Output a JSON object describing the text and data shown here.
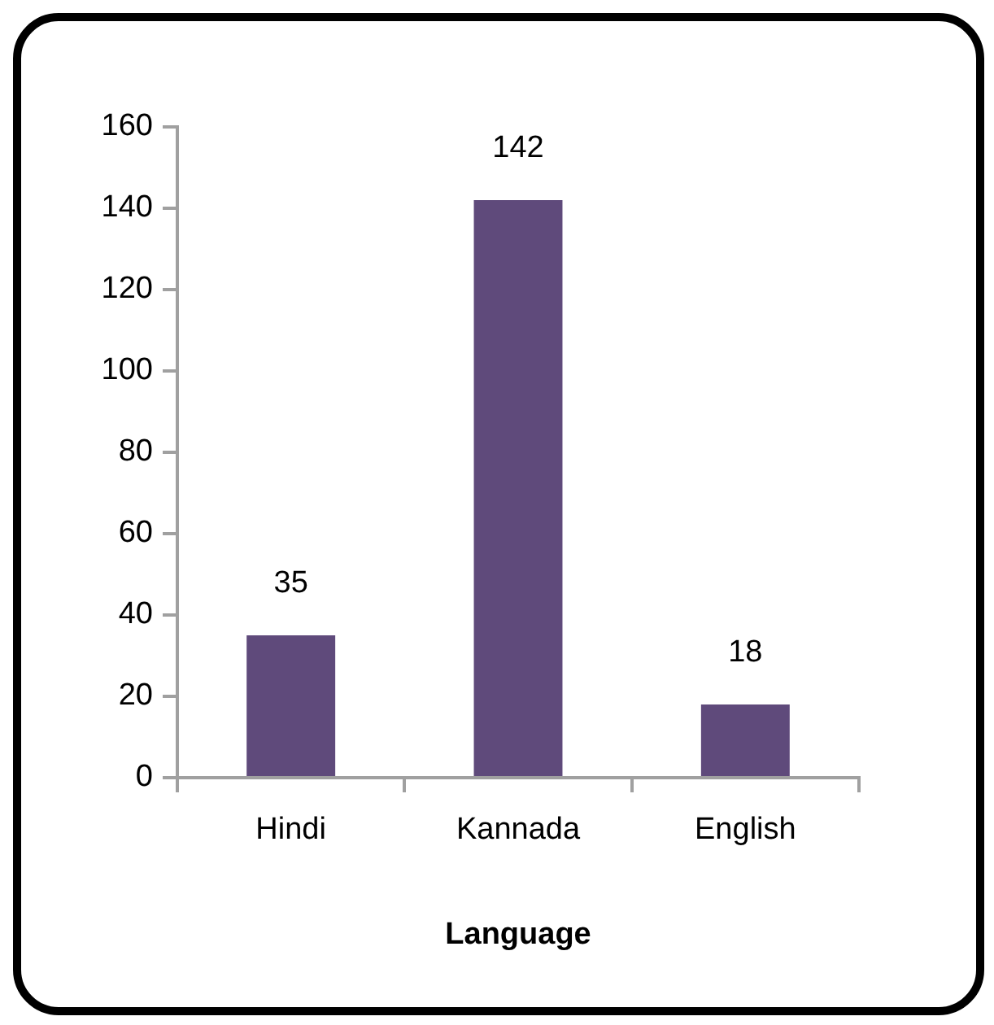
{
  "chart_data": {
    "type": "bar",
    "xlabel": "Language",
    "categories": [
      "Hindi",
      "Kannada",
      "English"
    ],
    "values": [
      35,
      142,
      18
    ],
    "color": "#5f4a7b",
    "ylim": [
      0,
      160
    ],
    "yticks": [
      0,
      20,
      40,
      60,
      80,
      100,
      120,
      140,
      160
    ],
    "data_labels": true
  }
}
